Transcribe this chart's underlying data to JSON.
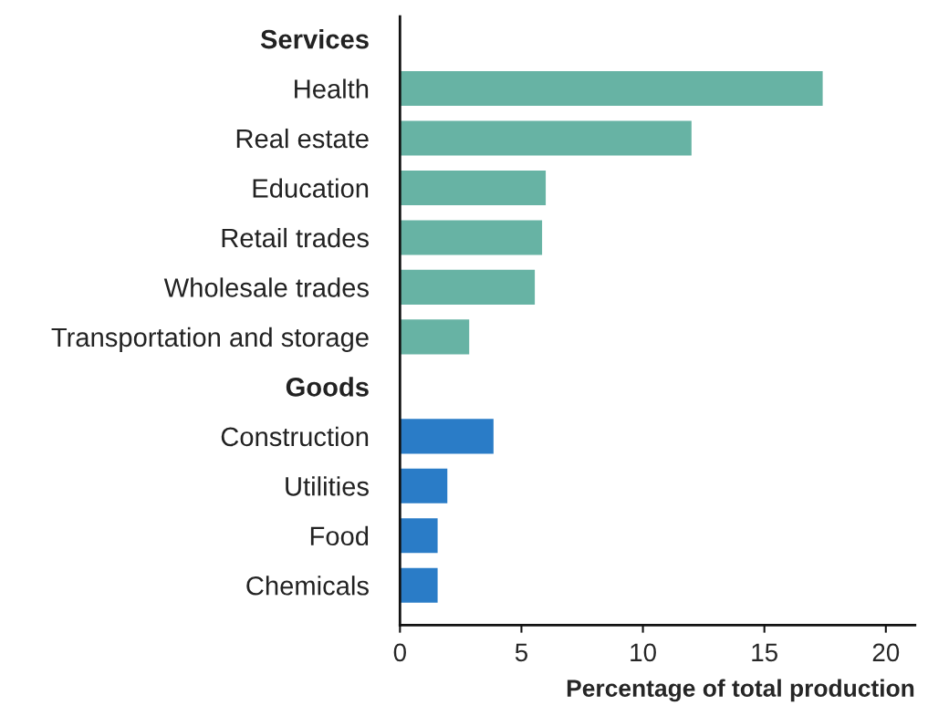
{
  "chart_data": {
    "type": "bar",
    "orientation": "horizontal",
    "xlabel": "Percentage of total production",
    "categories": [
      "Services",
      "Health",
      "Real estate",
      "Education",
      "Retail trades",
      "Wholesale trades",
      "Transportation and storage",
      "Goods",
      "Construction",
      "Utilities",
      "Food",
      "Chemicals"
    ],
    "values": [
      null,
      17.4,
      12.0,
      6.0,
      5.85,
      5.55,
      2.85,
      null,
      3.85,
      1.95,
      1.55,
      1.55
    ],
    "colors": [
      null,
      "#67b3a4",
      "#67b3a4",
      "#67b3a4",
      "#67b3a4",
      "#67b3a4",
      "#67b3a4",
      null,
      "#2a7cc7",
      "#2a7cc7",
      "#2a7cc7",
      "#2a7cc7"
    ],
    "xlim": [
      0,
      21.2
    ],
    "xticks": [
      0,
      5,
      10,
      15,
      20
    ],
    "grid": false
  }
}
